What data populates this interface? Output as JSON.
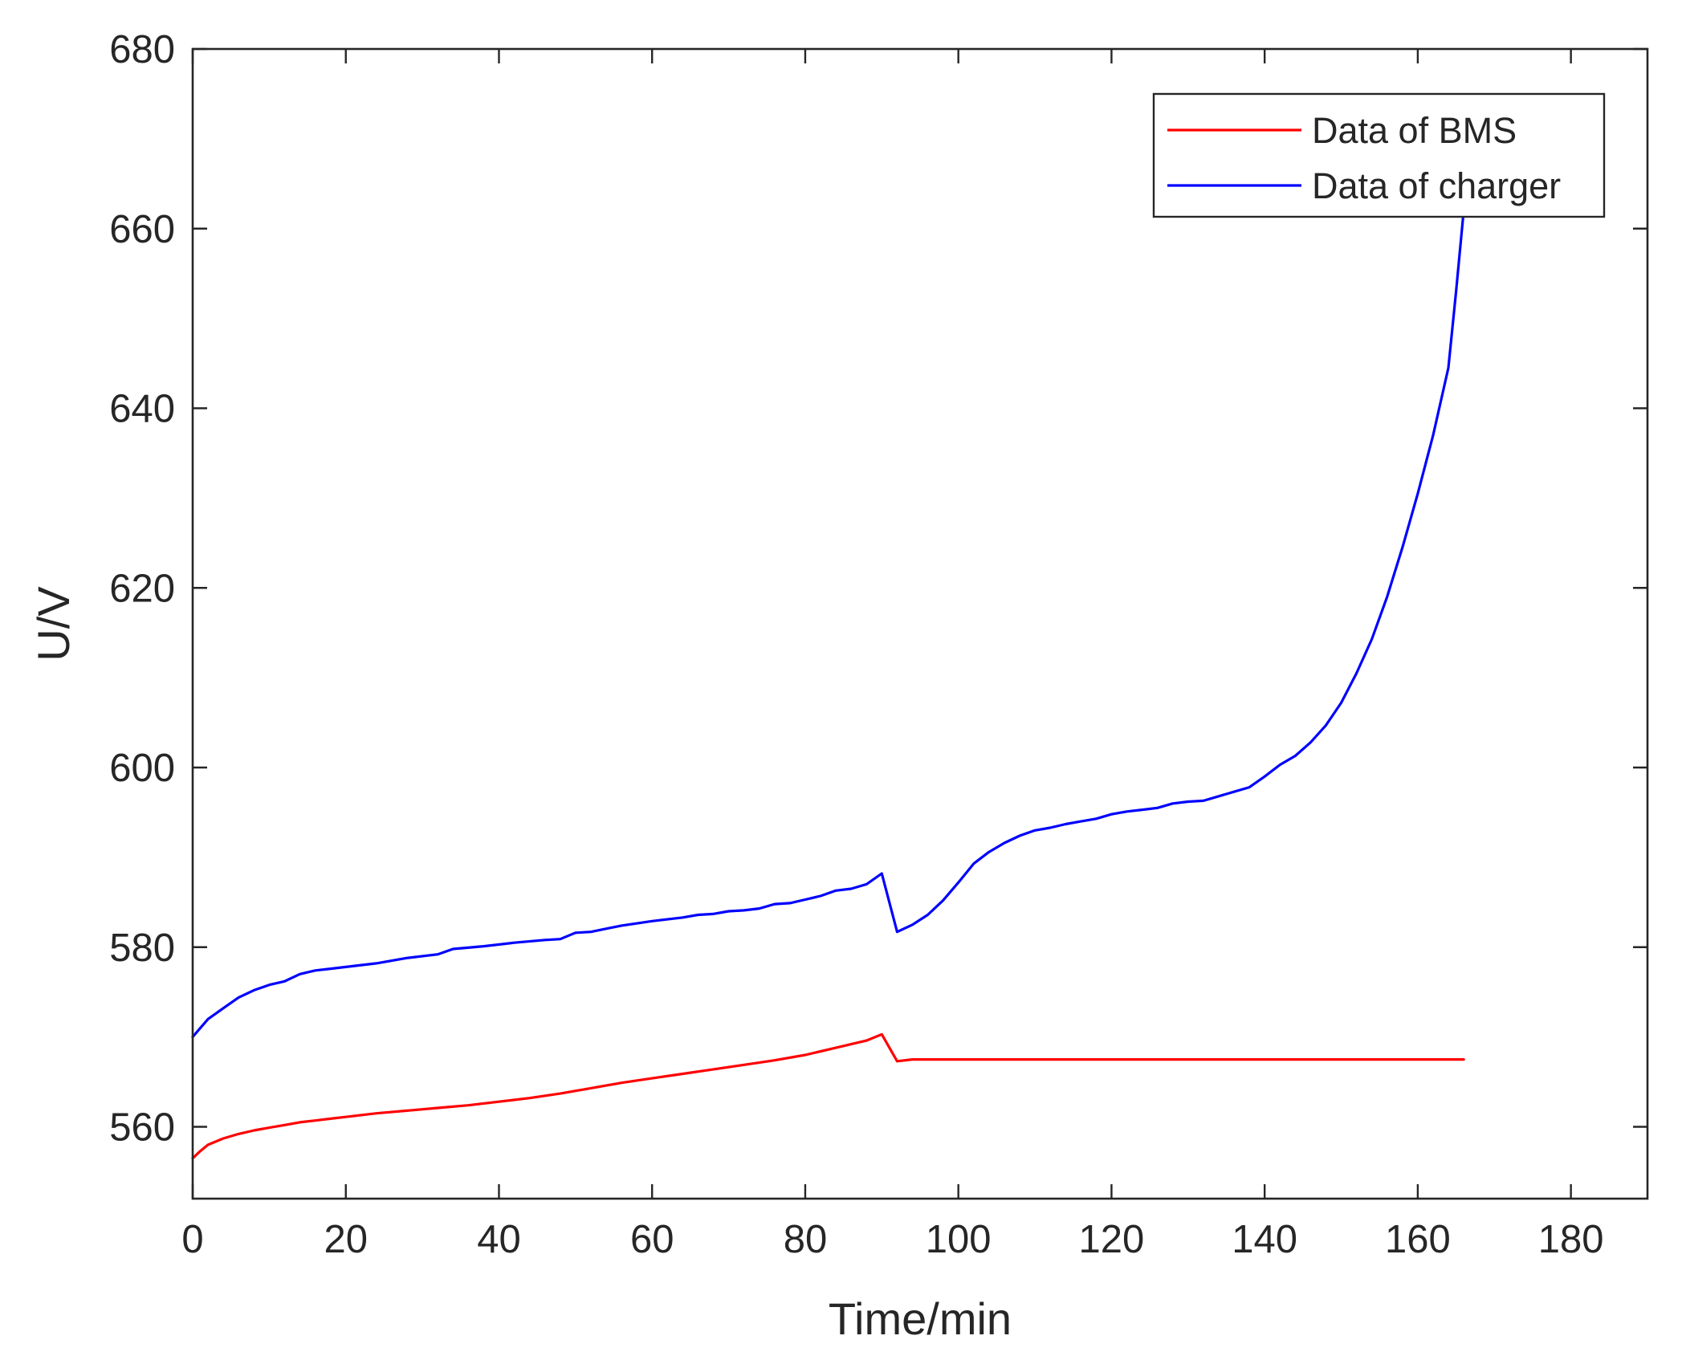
{
  "chart_data": {
    "type": "line",
    "title": "",
    "xlabel": "Time/min",
    "ylabel": "U/V",
    "xlim": [
      0,
      190
    ],
    "ylim": [
      552,
      680
    ],
    "xticks": [
      0,
      20,
      40,
      60,
      80,
      100,
      120,
      140,
      160,
      180
    ],
    "yticks": [
      560,
      580,
      600,
      620,
      640,
      660,
      680
    ],
    "grid": false,
    "legend": {
      "position": "top-right"
    },
    "series": [
      {
        "name": "Data of BMS",
        "color": "#ff0000",
        "x": [
          0,
          1,
          2,
          4,
          6,
          8,
          10,
          12,
          14,
          16,
          18,
          20,
          24,
          28,
          32,
          36,
          40,
          44,
          48,
          52,
          56,
          60,
          64,
          68,
          72,
          76,
          80,
          84,
          88,
          90,
          92,
          94,
          100,
          110,
          120,
          130,
          140,
          150,
          160,
          166
        ],
        "values": [
          556.5,
          557.3,
          558.0,
          558.7,
          559.2,
          559.6,
          559.9,
          560.2,
          560.5,
          560.7,
          560.9,
          561.1,
          561.5,
          561.8,
          562.1,
          562.4,
          562.8,
          563.2,
          563.7,
          564.3,
          564.9,
          565.4,
          565.9,
          566.4,
          566.9,
          567.4,
          568.0,
          568.8,
          569.6,
          570.3,
          567.3,
          567.5,
          567.5,
          567.5,
          567.5,
          567.5,
          567.5,
          567.5,
          567.5,
          567.5
        ]
      },
      {
        "name": "Data of charger",
        "color": "#0000ff",
        "x": [
          0,
          2,
          4,
          6,
          8,
          10,
          12,
          14,
          16,
          18,
          20,
          24,
          28,
          32,
          34,
          38,
          42,
          46,
          48,
          50,
          52,
          56,
          60,
          64,
          66,
          68,
          70,
          72,
          74,
          76,
          78,
          80,
          82,
          84,
          86,
          88,
          90,
          92,
          94,
          96,
          98,
          100,
          102,
          104,
          106,
          108,
          110,
          112,
          114,
          116,
          118,
          120,
          122,
          124,
          126,
          128,
          130,
          132,
          134,
          136,
          138,
          140,
          142,
          144,
          146,
          148,
          150,
          152,
          154,
          156,
          158,
          160,
          162,
          164,
          165,
          166
        ],
        "values": [
          570.0,
          572.0,
          573.2,
          574.4,
          575.2,
          575.8,
          576.2,
          577.0,
          577.4,
          577.6,
          577.8,
          578.2,
          578.8,
          579.2,
          579.8,
          580.1,
          580.5,
          580.8,
          580.9,
          581.6,
          581.7,
          582.4,
          582.9,
          583.3,
          583.6,
          583.7,
          584.0,
          584.1,
          584.3,
          584.8,
          584.9,
          585.3,
          585.7,
          586.3,
          586.5,
          587.0,
          588.2,
          581.7,
          582.5,
          583.6,
          585.2,
          587.2,
          589.3,
          590.6,
          591.6,
          592.4,
          593.0,
          593.3,
          593.7,
          594.0,
          594.3,
          594.8,
          595.1,
          595.3,
          595.5,
          596.0,
          596.2,
          596.3,
          596.8,
          597.3,
          597.8,
          599.0,
          600.3,
          601.3,
          602.8,
          604.7,
          607.2,
          610.5,
          614.3,
          619.0,
          624.5,
          630.5,
          637.0,
          644.5,
          653.0,
          662.0
        ]
      }
    ]
  }
}
